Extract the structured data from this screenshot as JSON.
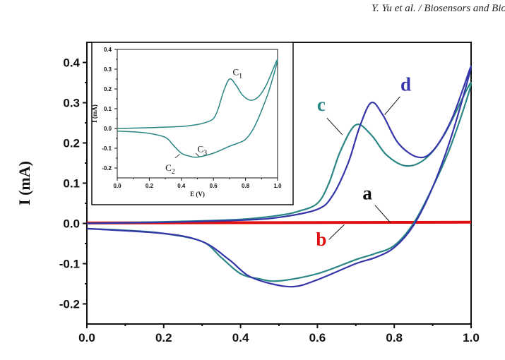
{
  "header": {
    "running_title": "Y. Yu et al. / Biosensors and Bio"
  },
  "chart_data": [
    {
      "type": "line",
      "title": "",
      "xlabel": "",
      "ylabel": "I (mA)",
      "xlim": [
        0,
        1.0
      ],
      "ylim": [
        -0.25,
        0.45
      ],
      "xticks": [
        "0.0",
        "0.2",
        "0.4",
        "0.6",
        "0.8",
        "1.0"
      ],
      "yticks": [
        "-0.2",
        "-0.1",
        "0.0",
        "0.1",
        "0.2",
        "0.3",
        "0.4"
      ],
      "grid": false,
      "series": [
        {
          "name": "a",
          "color": "#111111",
          "label_pos": [
            0.73,
            0.06
          ],
          "x": [
            0,
            1.0
          ],
          "y": [
            0.0,
            0.002
          ]
        },
        {
          "name": "b",
          "color": "#e01010",
          "label_pos": [
            0.61,
            -0.055
          ],
          "x": [
            0,
            1.0
          ],
          "y": [
            0.001,
            0.003
          ]
        },
        {
          "name": "c",
          "color": "#2a8585",
          "label_pos": [
            0.61,
            0.28
          ],
          "x": [
            0,
            0.2,
            0.4,
            0.5,
            0.55,
            0.6,
            0.63,
            0.66,
            0.7,
            0.74,
            0.78,
            0.83,
            0.88,
            0.93,
            1.0,
            0.95,
            0.9,
            0.85,
            0.8,
            0.75,
            0.7,
            0.6,
            0.5,
            0.45,
            0.4,
            0.35,
            0.3,
            0.2,
            0.1,
            0
          ],
          "y": [
            0,
            0.004,
            0.01,
            0.02,
            0.03,
            0.05,
            0.1,
            0.18,
            0.245,
            0.22,
            0.17,
            0.143,
            0.16,
            0.22,
            0.35,
            0.2,
            0.09,
            0.0,
            -0.055,
            -0.075,
            -0.09,
            -0.125,
            -0.143,
            -0.138,
            -0.125,
            -0.085,
            -0.045,
            -0.025,
            -0.017,
            -0.013
          ]
        },
        {
          "name": "d",
          "color": "#3535aa",
          "label_pos": [
            0.83,
            0.33
          ],
          "x": [
            0,
            0.2,
            0.4,
            0.5,
            0.6,
            0.64,
            0.68,
            0.71,
            0.74,
            0.77,
            0.81,
            0.86,
            0.9,
            0.95,
            1.0,
            0.95,
            0.9,
            0.85,
            0.8,
            0.75,
            0.7,
            0.6,
            0.54,
            0.48,
            0.42,
            0.37,
            0.3,
            0.2,
            0
          ],
          "y": [
            0,
            0.003,
            0.008,
            0.015,
            0.035,
            0.07,
            0.15,
            0.24,
            0.3,
            0.27,
            0.2,
            0.165,
            0.18,
            0.26,
            0.39,
            0.22,
            0.09,
            -0.005,
            -0.06,
            -0.085,
            -0.1,
            -0.14,
            -0.157,
            -0.15,
            -0.13,
            -0.09,
            -0.045,
            -0.025,
            -0.013
          ]
        }
      ]
    },
    {
      "type": "line",
      "title": "",
      "xlabel": "E (V)",
      "ylabel": "I (mA)",
      "xlim": [
        0,
        1.0
      ],
      "ylim": [
        -0.25,
        0.4
      ],
      "xticks": [
        "0.0",
        "0.2",
        "0.4",
        "0.6",
        "0.8",
        "1.0"
      ],
      "yticks": [
        "-0.2",
        "-0.1",
        "0.0",
        "0.1",
        "0.2",
        "0.3",
        "0.4"
      ],
      "grid": false,
      "annotations": [
        {
          "text": "C",
          "sub": "1",
          "pos": [
            0.72,
            0.27
          ]
        },
        {
          "text": "C",
          "sub": "2",
          "pos": [
            0.3,
            -0.215
          ]
        },
        {
          "text": "C",
          "sub": "3",
          "pos": [
            0.5,
            -0.12
          ]
        }
      ],
      "series": [
        {
          "color": "#2a8585",
          "x": [
            0,
            0.2,
            0.4,
            0.5,
            0.55,
            0.6,
            0.63,
            0.66,
            0.7,
            0.74,
            0.78,
            0.83,
            0.88,
            0.93,
            1.0,
            0.95,
            0.9,
            0.85,
            0.8,
            0.75,
            0.7,
            0.6,
            0.5,
            0.45,
            0.4,
            0.35,
            0.3,
            0.2,
            0.1,
            0
          ],
          "y": [
            0,
            0.004,
            0.01,
            0.02,
            0.03,
            0.05,
            0.1,
            0.18,
            0.25,
            0.22,
            0.17,
            0.143,
            0.16,
            0.22,
            0.35,
            0.2,
            0.09,
            0.0,
            -0.055,
            -0.075,
            -0.09,
            -0.125,
            -0.145,
            -0.14,
            -0.125,
            -0.085,
            -0.045,
            -0.025,
            -0.017,
            -0.013
          ]
        }
      ]
    }
  ]
}
